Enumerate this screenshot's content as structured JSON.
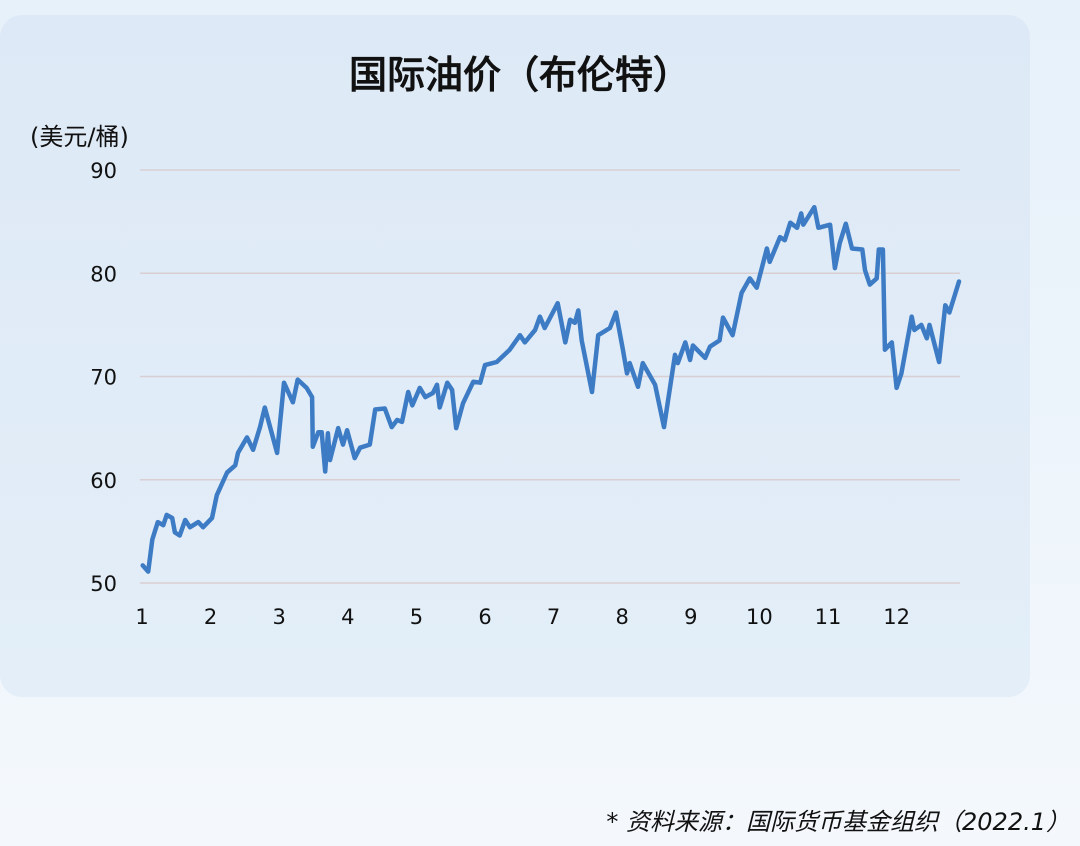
{
  "chart_data": {
    "type": "line",
    "title": "国际油价（布伦特）",
    "ylabel": "(美元/桶)",
    "xlabel": "",
    "ylim": [
      50,
      90
    ],
    "yticks": [
      50,
      60,
      70,
      80,
      90
    ],
    "xticks": [
      1,
      2,
      3,
      4,
      5,
      6,
      7,
      8,
      9,
      10,
      11,
      12
    ],
    "grid": true,
    "line_color": "#3d7cc4",
    "series": [
      {
        "x": [
          1.01,
          1.09,
          1.15,
          1.23,
          1.31,
          1.36,
          1.44,
          1.48,
          1.55,
          1.63,
          1.7,
          1.82,
          1.89,
          2.02,
          2.09,
          2.24,
          2.36,
          2.4,
          2.53,
          2.62,
          2.72,
          2.79,
          2.97,
          3.07,
          3.2,
          3.27,
          3.4,
          3.48,
          3.49,
          3.57,
          3.62,
          3.67,
          3.71,
          3.74,
          3.86,
          3.93,
          3.99,
          4.1,
          4.18,
          4.32,
          4.4,
          4.54,
          4.64,
          4.72,
          4.79,
          4.88,
          4.94,
          5.05,
          5.13,
          5.24,
          5.3,
          5.34,
          5.45,
          5.52,
          5.58,
          5.68,
          5.83,
          5.93,
          6.0,
          6.17,
          6.36,
          6.51,
          6.58,
          6.73,
          6.8,
          6.87,
          7.06,
          7.17,
          7.24,
          7.31,
          7.36,
          7.41,
          7.56,
          7.65,
          7.82,
          7.91,
          8.01,
          8.07,
          8.11,
          8.23,
          8.3,
          8.48,
          8.61,
          8.77,
          8.81,
          8.92,
          8.99,
          9.03,
          9.21,
          9.28,
          9.42,
          9.47,
          9.61,
          9.74,
          9.86,
          9.96,
          10.11,
          10.15,
          10.3,
          10.37,
          10.45,
          10.55,
          10.61,
          10.64,
          10.8,
          10.86,
          11.03,
          11.1,
          11.17,
          11.26,
          11.35,
          11.5,
          11.54,
          11.61,
          11.71,
          11.74,
          11.8,
          11.83,
          11.93,
          12.0,
          12.07,
          12.22,
          12.26,
          12.36,
          12.44,
          12.48,
          12.62,
          12.71,
          12.77,
          12.91
        ],
        "y": [
          51.7,
          51.1,
          54.2,
          55.9,
          55.6,
          56.6,
          56.3,
          54.9,
          54.6,
          56.1,
          55.4,
          55.9,
          55.4,
          56.3,
          58.5,
          60.7,
          61.4,
          62.6,
          64.1,
          62.9,
          65.1,
          67.0,
          62.6,
          69.4,
          67.5,
          69.7,
          68.9,
          68.0,
          63.2,
          64.6,
          64.6,
          60.8,
          64.5,
          61.9,
          65.0,
          63.4,
          64.8,
          62.1,
          63.1,
          63.4,
          66.8,
          66.9,
          65.1,
          65.8,
          65.6,
          68.5,
          67.2,
          68.9,
          68.0,
          68.4,
          69.2,
          67.0,
          69.4,
          68.7,
          65.0,
          67.4,
          69.5,
          69.4,
          71.1,
          71.4,
          72.6,
          74.0,
          73.3,
          74.5,
          75.8,
          74.7,
          77.1,
          73.3,
          75.5,
          75.2,
          76.4,
          73.5,
          68.5,
          74.0,
          74.7,
          76.2,
          72.6,
          70.3,
          71.3,
          69.0,
          71.3,
          69.2,
          65.1,
          72.1,
          71.3,
          73.3,
          71.6,
          73.0,
          71.8,
          72.9,
          73.5,
          75.7,
          74.0,
          78.1,
          79.5,
          78.6,
          82.4,
          81.1,
          83.5,
          83.2,
          84.9,
          84.4,
          85.8,
          84.7,
          86.4,
          84.4,
          84.7,
          80.5,
          82.9,
          84.8,
          82.4,
          82.3,
          80.3,
          78.9,
          79.5,
          82.3,
          82.3,
          72.6,
          73.3,
          68.9,
          70.3,
          75.8,
          74.5,
          75.0,
          73.7,
          75.0,
          71.4,
          76.9,
          76.2,
          79.2
        ]
      }
    ]
  },
  "footnote": "* 资料来源：国际货币基金组织（2022.1）"
}
